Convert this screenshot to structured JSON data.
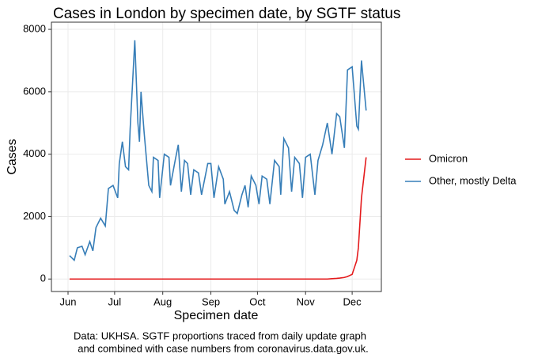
{
  "chart_data": {
    "type": "line",
    "title": "Cases in London by specimen date, by SGTF status",
    "x_label": "Specimen date",
    "y_label": "Cases",
    "caption": [
      "Data: UKHSA. SGTF proportions traced from daily update graph",
      "and combined with case numbers from coronavirus.data.gov.uk."
    ],
    "x": [
      1,
      4,
      6,
      9,
      11,
      14,
      16,
      18,
      21,
      24,
      26,
      29,
      32,
      33,
      35,
      37,
      39,
      40,
      43,
      45,
      46,
      47,
      49,
      52,
      54,
      55,
      58,
      59,
      62,
      65,
      66,
      69,
      71,
      73,
      75,
      77,
      79,
      81,
      84,
      86,
      90,
      92,
      94,
      97,
      100,
      101,
      104,
      107,
      109,
      112,
      114,
      116,
      118,
      121,
      123,
      125,
      128,
      130,
      133,
      136,
      137,
      139,
      142,
      144,
      146,
      149,
      151,
      153,
      156,
      159,
      161,
      164,
      167,
      170,
      173,
      175,
      178,
      180,
      183,
      186,
      187,
      189,
      192
    ],
    "series": [
      {
        "name": "Omicron",
        "color": "#e41a1c",
        "values": [
          0,
          0,
          0,
          0,
          0,
          0,
          0,
          0,
          0,
          0,
          0,
          0,
          0,
          0,
          0,
          0,
          0,
          0,
          0,
          0,
          0,
          0,
          0,
          0,
          0,
          0,
          0,
          0,
          0,
          0,
          0,
          0,
          0,
          0,
          0,
          0,
          0,
          0,
          0,
          0,
          0,
          0,
          0,
          0,
          0,
          0,
          0,
          0,
          0,
          0,
          0,
          0,
          0,
          0,
          0,
          0,
          0,
          0,
          0,
          0,
          0,
          0,
          0,
          0,
          0,
          0,
          0,
          0,
          0,
          0,
          0,
          0,
          0,
          10,
          20,
          30,
          50,
          80,
          150,
          600,
          1000,
          2600,
          3900
        ]
      },
      {
        "name": "Other, mostly Delta",
        "color": "#377eb8",
        "values": [
          750,
          600,
          1000,
          1050,
          780,
          1200,
          900,
          1650,
          1950,
          1700,
          2900,
          3000,
          2600,
          3700,
          4400,
          3600,
          3500,
          4800,
          7650,
          5000,
          4400,
          6000,
          4700,
          3000,
          2800,
          3900,
          3800,
          2600,
          4000,
          3900,
          3000,
          3800,
          4300,
          2800,
          3800,
          3700,
          2700,
          3500,
          3400,
          2700,
          3700,
          3700,
          2600,
          3600,
          3200,
          2400,
          2800,
          2200,
          2100,
          2700,
          3000,
          2300,
          3300,
          3000,
          2400,
          3300,
          3200,
          2400,
          3800,
          3600,
          2700,
          4500,
          4200,
          2800,
          3900,
          3700,
          2600,
          3900,
          4000,
          2700,
          3800,
          4300,
          5000,
          4000,
          5300,
          5200,
          4200,
          6700,
          6800,
          4900,
          4800,
          7000,
          5400
        ]
      }
    ],
    "xlim": [
      -10.7,
      201.8
    ],
    "xticks": [
      {
        "value": 0,
        "label": "Jun"
      },
      {
        "value": 30,
        "label": "Jul"
      },
      {
        "value": 61,
        "label": "Aug"
      },
      {
        "value": 92,
        "label": "Sep"
      },
      {
        "value": 122,
        "label": "Oct"
      },
      {
        "value": 153,
        "label": "Nov"
      },
      {
        "value": 183,
        "label": "Dec"
      }
    ],
    "ylim": [
      -400,
      8230
    ],
    "yticks": [
      0,
      2000,
      4000,
      6000,
      8000
    ],
    "grid": true
  }
}
